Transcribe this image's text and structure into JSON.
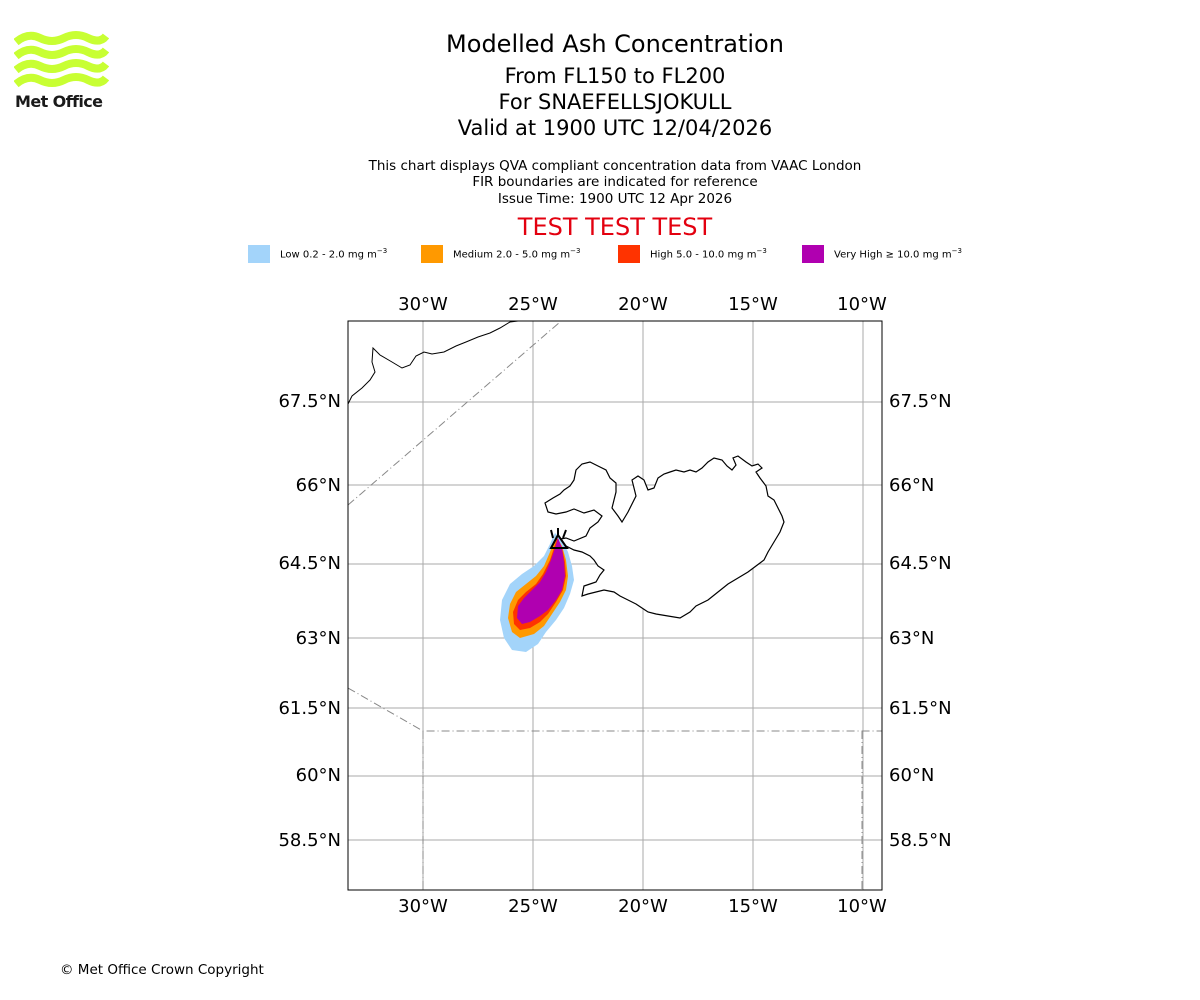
{
  "branding": {
    "logo_text": "Met Office",
    "logo_color": "#c8ff33",
    "copyright": "© Met Office Crown Copyright"
  },
  "header": {
    "title": "Modelled Ash Concentration",
    "level_range": "From FL150 to FL200",
    "volcano_line": "For SNAEFELLSJOKULL",
    "valid_line": "Valid at 1900 UTC 12/04/2026",
    "description_1": "This chart displays QVA compliant concentration data from VAAC London",
    "description_2": "FIR boundaries are indicated for reference",
    "issue_time": "Issue Time: 1900 UTC 12 Apr 2026",
    "test_banner": "TEST TEST TEST",
    "test_color": "#e3000f"
  },
  "legend": [
    {
      "label": "Low 0.2 - 2.0 mg m",
      "unit_sup": "−3",
      "color": "#a3d4fa"
    },
    {
      "label": "Medium 2.0 - 5.0 mg m",
      "unit_sup": "−3",
      "color": "#ff9900"
    },
    {
      "label": "High 5.0 - 10.0 mg m",
      "unit_sup": "−3",
      "color": "#ff3300"
    },
    {
      "label": "Very High ≥ 10.0 mg m",
      "unit_sup": "−3",
      "color": "#b000b0"
    }
  ],
  "map": {
    "lon_ticks": [
      "30°W",
      "25°W",
      "20°W",
      "15°W",
      "10°W"
    ],
    "lat_ticks": [
      "67.5°N",
      "66°N",
      "64.5°N",
      "63°N",
      "61.5°N",
      "60°N",
      "58.5°N"
    ],
    "gridline_color": "#aaaaaa",
    "coast_color": "#000000",
    "fir_color": "#888888",
    "volcano_symbol": "triangle-marker"
  }
}
